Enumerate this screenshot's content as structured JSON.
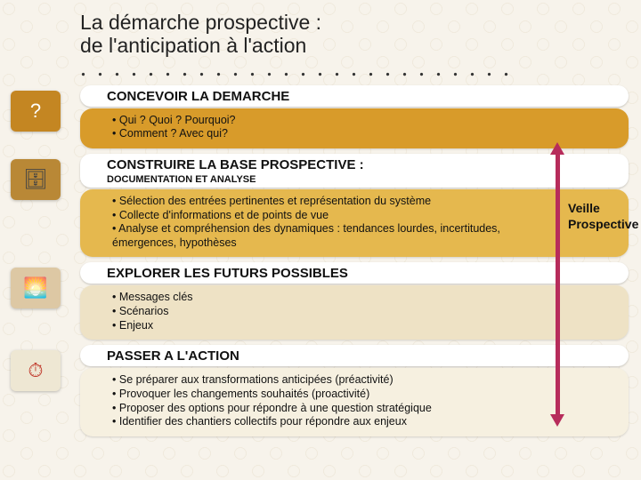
{
  "title": {
    "line1": "La démarche prospective :",
    "line2": "de l'anticipation à l'action"
  },
  "side_label": {
    "line1": "Veille",
    "line2": "Prospective"
  },
  "colors": {
    "step1_body": "#d89b2a",
    "step2_body": "#e5b84e",
    "step3_body": "#eee2c5",
    "step4_body": "#f6f0e0",
    "icon1_bg": "#c48622",
    "icon2_bg": "#b98836",
    "icon3_bg": "#ddc8a4",
    "icon4_bg": "#eee7d3",
    "arrow": "#b72c5b"
  },
  "steps": [
    {
      "id": "concevoir",
      "icon": "?",
      "heading": "CONCEVOIR LA DEMARCHE",
      "subheading": "",
      "bullets": [
        "Qui ? Quoi ? Pourquoi?",
        "Comment ? Avec qui?"
      ]
    },
    {
      "id": "construire",
      "icon": "🗄",
      "heading": "CONSTRUIRE LA BASE PROSPECTIVE :",
      "subheading": "DOCUMENTATION ET ANALYSE",
      "bullets": [
        "Sélection des entrées pertinentes et représentation du système",
        "Collecte d'informations et de points de vue",
        "Analyse et compréhension des dynamiques : tendances lourdes, incertitudes, émergences, hypothèses"
      ]
    },
    {
      "id": "explorer",
      "icon": "🌅",
      "heading": "EXPLORER LES FUTURS POSSIBLES",
      "subheading": "",
      "bullets": [
        "Messages clés",
        "Scénarios",
        "Enjeux"
      ]
    },
    {
      "id": "action",
      "icon": "⏱",
      "heading": "PASSER A L'ACTION",
      "subheading": "",
      "bullets": [
        "Se préparer aux transformations anticipées (préactivité)",
        "Provoquer les changements souhaités (proactivité)",
        "Proposer des options pour répondre à une question stratégique",
        "Identifier des chantiers collectifs pour répondre aux enjeux"
      ]
    }
  ]
}
